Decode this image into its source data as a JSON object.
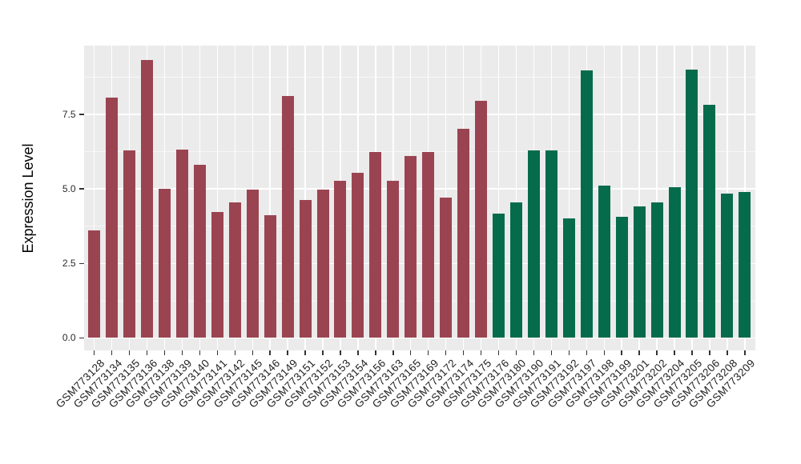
{
  "chart_data": {
    "type": "bar",
    "title": "",
    "xlabel": "",
    "ylabel": "Expression Level",
    "grid": true,
    "legend": "none",
    "panel_background": "#EBEBEB",
    "gridline_color": "#FFFFFF",
    "tick_color": "#333333",
    "ylim": [
      -0.42,
      9.81
    ],
    "yticks": [
      0.0,
      2.5,
      5.0,
      7.5
    ],
    "ytick_labels": [
      "0.0",
      "2.5",
      "5.0",
      "7.5"
    ],
    "minor_yticks": [
      1.25,
      3.75,
      6.25,
      8.75
    ],
    "categories": [
      "GSM773128",
      "GSM773134",
      "GSM773135",
      "GSM773136",
      "GSM773138",
      "GSM773139",
      "GSM773140",
      "GSM773141",
      "GSM773142",
      "GSM773145",
      "GSM773146",
      "GSM773149",
      "GSM773151",
      "GSM773152",
      "GSM773153",
      "GSM773154",
      "GSM773156",
      "GSM773163",
      "GSM773165",
      "GSM773169",
      "GSM773172",
      "GSM773174",
      "GSM773175",
      "GSM773176",
      "GSM773180",
      "GSM773190",
      "GSM773191",
      "GSM773192",
      "GSM773197",
      "GSM773198",
      "GSM773199",
      "GSM773201",
      "GSM773202",
      "GSM773204",
      "GSM773205",
      "GSM773206",
      "GSM773208",
      "GSM773209"
    ],
    "values": [
      3.62,
      8.06,
      6.3,
      9.34,
      5.0,
      6.31,
      5.81,
      4.22,
      4.56,
      4.98,
      4.13,
      8.13,
      4.62,
      4.98,
      5.26,
      5.53,
      6.23,
      5.27,
      6.11,
      6.23,
      4.7,
      7.03,
      7.97,
      4.16,
      4.56,
      6.28,
      6.3,
      4.01,
      8.99,
      5.11,
      4.07,
      4.4,
      4.56,
      5.07,
      9.01,
      7.81,
      4.83,
      4.89
    ],
    "group_split_index": 23,
    "group_colors": [
      "#9B4451",
      "#056B4B"
    ]
  }
}
